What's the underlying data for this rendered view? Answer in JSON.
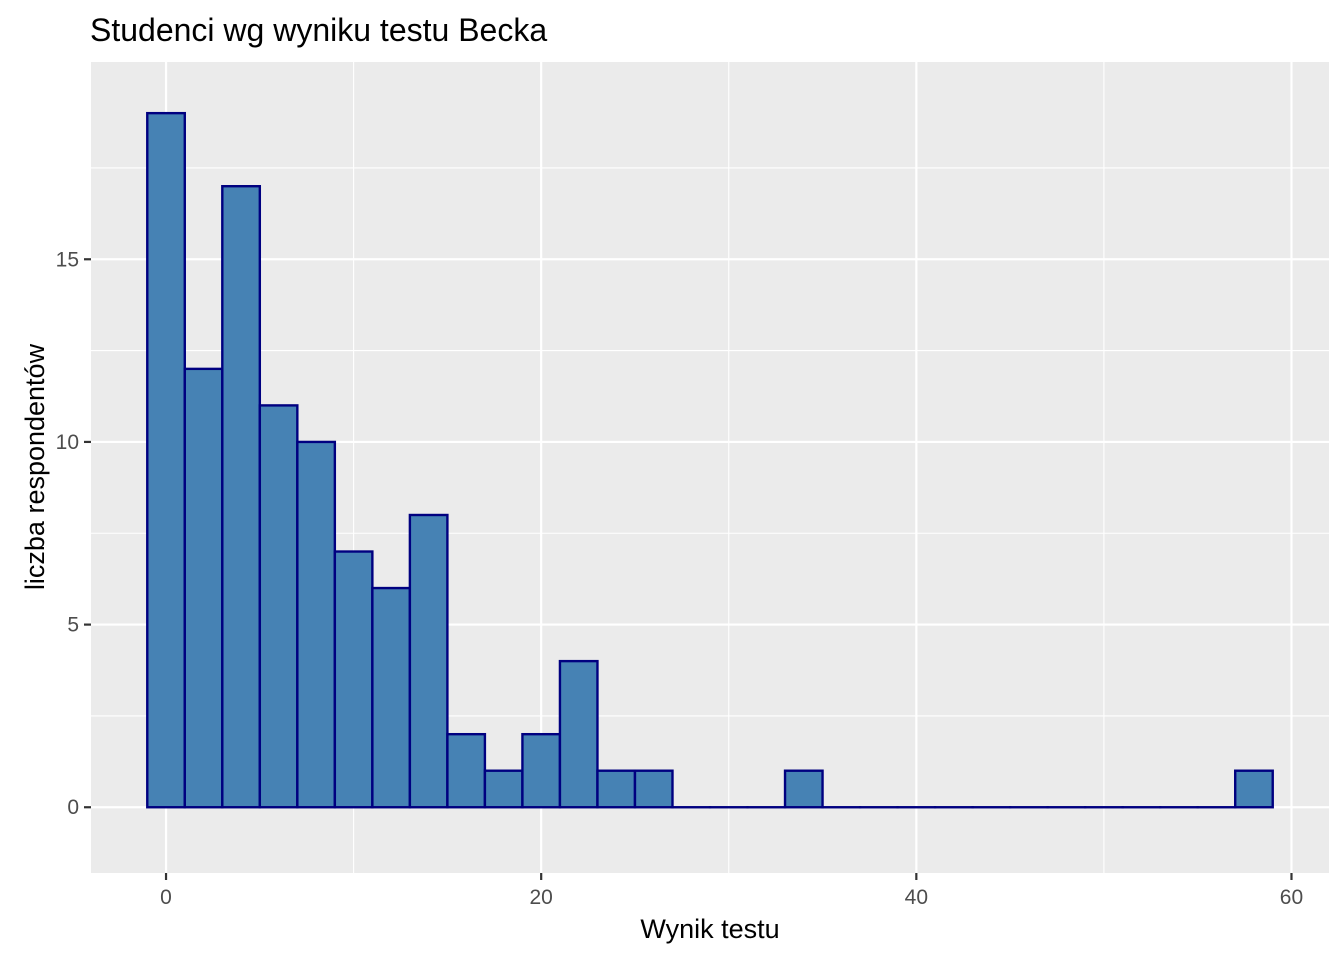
{
  "chart_data": {
    "type": "bar",
    "title": "Studenci wg wyniku testu Becka",
    "xlabel": "Wynik testu",
    "ylabel": "liczba respondentów",
    "bin_width": 2,
    "bins": [
      {
        "x_start": -1,
        "x_end": 1,
        "count": 19
      },
      {
        "x_start": 1,
        "x_end": 3,
        "count": 12
      },
      {
        "x_start": 3,
        "x_end": 5,
        "count": 17
      },
      {
        "x_start": 5,
        "x_end": 7,
        "count": 11
      },
      {
        "x_start": 7,
        "x_end": 9,
        "count": 10
      },
      {
        "x_start": 9,
        "x_end": 11,
        "count": 7
      },
      {
        "x_start": 11,
        "x_end": 13,
        "count": 6
      },
      {
        "x_start": 13,
        "x_end": 15,
        "count": 8
      },
      {
        "x_start": 15,
        "x_end": 17,
        "count": 2
      },
      {
        "x_start": 17,
        "x_end": 19,
        "count": 1
      },
      {
        "x_start": 19,
        "x_end": 21,
        "count": 2
      },
      {
        "x_start": 21,
        "x_end": 23,
        "count": 4
      },
      {
        "x_start": 23,
        "x_end": 25,
        "count": 1
      },
      {
        "x_start": 25,
        "x_end": 27,
        "count": 1
      },
      {
        "x_start": 27,
        "x_end": 29,
        "count": 0
      },
      {
        "x_start": 29,
        "x_end": 31,
        "count": 0
      },
      {
        "x_start": 31,
        "x_end": 33,
        "count": 0
      },
      {
        "x_start": 33,
        "x_end": 35,
        "count": 1
      },
      {
        "x_start": 35,
        "x_end": 37,
        "count": 0
      },
      {
        "x_start": 37,
        "x_end": 39,
        "count": 0
      },
      {
        "x_start": 39,
        "x_end": 41,
        "count": 0
      },
      {
        "x_start": 41,
        "x_end": 43,
        "count": 0
      },
      {
        "x_start": 43,
        "x_end": 45,
        "count": 0
      },
      {
        "x_start": 45,
        "x_end": 47,
        "count": 0
      },
      {
        "x_start": 47,
        "x_end": 49,
        "count": 0
      },
      {
        "x_start": 49,
        "x_end": 51,
        "count": 0
      },
      {
        "x_start": 51,
        "x_end": 53,
        "count": 0
      },
      {
        "x_start": 53,
        "x_end": 55,
        "count": 0
      },
      {
        "x_start": 55,
        "x_end": 57,
        "count": 0
      },
      {
        "x_start": 57,
        "x_end": 59,
        "count": 1
      }
    ],
    "xlim": [
      -4,
      62
    ],
    "ylim": [
      -1.8,
      20.4
    ],
    "x_ticks": [
      0,
      20,
      40,
      60
    ],
    "x_tick_labels": [
      "0",
      "20",
      "40",
      "60"
    ],
    "y_ticks": [
      0,
      5,
      10,
      15
    ],
    "y_tick_labels": [
      "0",
      "5",
      "10",
      "15"
    ],
    "grid": true,
    "legend": "none",
    "colors": {
      "bar_fill": "#4682b4",
      "bar_outline": "#000080",
      "panel_background": "#ebebeb",
      "gridlines": "#ffffff"
    }
  }
}
